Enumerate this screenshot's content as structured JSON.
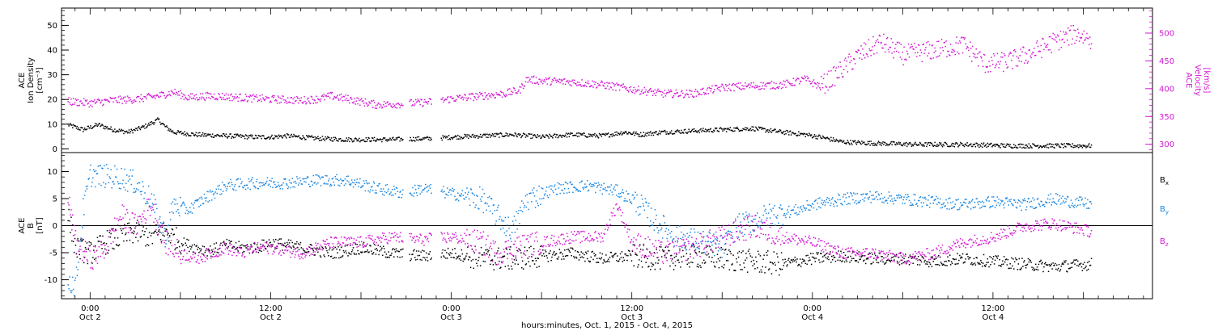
{
  "colors": {
    "black": "#000000",
    "magenta": "#d318d3",
    "blue": "#1a86e0",
    "frame": "#000000"
  },
  "x_axis": {
    "xlabel": "hours:minutes, Oct.  1, 2015 - Oct.  4, 2015",
    "ticks": [
      {
        "hours": 0,
        "time": "0:00",
        "day": "Oct 2"
      },
      {
        "hours": 12,
        "time": "12:00",
        "day": "Oct 2"
      },
      {
        "hours": 24,
        "time": "0:00",
        "day": "Oct 3"
      },
      {
        "hours": 36,
        "time": "12:00",
        "day": "Oct 3"
      },
      {
        "hours": 48,
        "time": "0:00",
        "day": "Oct 4"
      },
      {
        "hours": 60,
        "time": "12:00",
        "day": "Oct 4"
      }
    ]
  },
  "chart_data": [
    {
      "type": "scatter",
      "xunit": "hours from Oct 2 00:00",
      "xlim": [
        -1.9,
        70.6
      ],
      "left_axis": {
        "label_lines": [
          "ACE",
          "Ion Density",
          "[cm⁻³]"
        ],
        "ylim": [
          -1.5,
          57
        ],
        "ticks": [
          0,
          10,
          20,
          30,
          40,
          50
        ]
      },
      "right_axis": {
        "label_lines": [
          "ACE",
          "Velocity",
          "[km/s]"
        ],
        "ylim": [
          285,
          545
        ],
        "ticks": [
          300,
          350,
          400,
          450,
          500
        ]
      },
      "series": [
        {
          "name": "Ion Density",
          "axis": "left",
          "color": "black",
          "points": [
            [
              -1.5,
              10
            ],
            [
              -0.5,
              8
            ],
            [
              0.5,
              10
            ],
            [
              1.5,
              8
            ],
            [
              2.5,
              7
            ],
            [
              3.5,
              9
            ],
            [
              4.5,
              12
            ],
            [
              5.0,
              9
            ],
            [
              5.5,
              7
            ],
            [
              7,
              6
            ],
            [
              9,
              5.5
            ],
            [
              11,
              5
            ],
            [
              12,
              5
            ],
            [
              13,
              5.5
            ],
            [
              15,
              4.5
            ],
            [
              17,
              4
            ],
            [
              20,
              4
            ],
            [
              23,
              4.5
            ],
            [
              24,
              5
            ],
            [
              26,
              5.5
            ],
            [
              28,
              6
            ],
            [
              30,
              5
            ],
            [
              32,
              6
            ],
            [
              34,
              5.5
            ],
            [
              35.5,
              7
            ],
            [
              36.5,
              6
            ],
            [
              38,
              7
            ],
            [
              40,
              7.5
            ],
            [
              42,
              8
            ],
            [
              44,
              8.5
            ],
            [
              46,
              7
            ],
            [
              47.5,
              6
            ],
            [
              48.5,
              5
            ],
            [
              50,
              3
            ],
            [
              52,
              2.5
            ],
            [
              55,
              2
            ],
            [
              58,
              2
            ],
            [
              61,
              1.5
            ],
            [
              64,
              1.5
            ],
            [
              66.5,
              1.5
            ]
          ]
        },
        {
          "name": "Velocity",
          "axis": "right",
          "color": "magenta",
          "points": [
            [
              -1.5,
              378
            ],
            [
              0,
              375
            ],
            [
              1.5,
              380
            ],
            [
              3,
              382
            ],
            [
              4.5,
              388
            ],
            [
              5.5,
              395
            ],
            [
              6.5,
              385
            ],
            [
              8,
              388
            ],
            [
              10,
              385
            ],
            [
              12,
              382
            ],
            [
              14,
              380
            ],
            [
              15,
              382
            ],
            [
              16,
              388
            ],
            [
              17,
              383
            ],
            [
              19,
              372
            ],
            [
              21,
              374
            ],
            [
              23,
              378
            ],
            [
              24,
              383
            ],
            [
              26,
              388
            ],
            [
              27.5,
              392
            ],
            [
              28.5,
              398
            ],
            [
              29,
              418
            ],
            [
              30,
              415
            ],
            [
              32,
              413
            ],
            [
              34,
              408
            ],
            [
              36,
              400
            ],
            [
              38,
              392
            ],
            [
              40,
              392
            ],
            [
              42,
              403
            ],
            [
              44,
              406
            ],
            [
              46,
              408
            ],
            [
              47.5,
              418
            ],
            [
              48.5,
              405
            ],
            [
              49.5,
              425
            ],
            [
              51,
              460
            ],
            [
              52.5,
              485
            ],
            [
              54,
              462
            ],
            [
              56,
              470
            ],
            [
              58,
              480
            ],
            [
              59.5,
              445
            ],
            [
              61,
              450
            ],
            [
              62.5,
              465
            ],
            [
              64,
              485
            ],
            [
              65.5,
              500
            ],
            [
              66.5,
              490
            ]
          ]
        }
      ]
    },
    {
      "type": "scatter",
      "xunit": "hours from Oct 2 00:00",
      "xlim": [
        -1.9,
        70.6
      ],
      "left_axis": {
        "label_lines": [
          "ACE",
          "B",
          "[nT]"
        ],
        "ylim": [
          -13.5,
          13.5
        ],
        "ticks": [
          -10,
          -5,
          0,
          5,
          10
        ]
      },
      "zero_line": true,
      "legend": [
        "Bₓ",
        "Bᵧ",
        "Bᵩ"
      ],
      "legend_names": [
        "Bx",
        "By",
        "Bz"
      ],
      "legend_labels": [
        {
          "main": "B",
          "sub": "x"
        },
        {
          "main": "B",
          "sub": "y"
        },
        {
          "main": "B",
          "sub": "z"
        }
      ],
      "series": [
        {
          "name": "Bx",
          "color": "black",
          "points": [
            [
              -1.5,
              2
            ],
            [
              -1,
              -4
            ],
            [
              0,
              -5
            ],
            [
              1,
              -3
            ],
            [
              2,
              -2
            ],
            [
              3,
              -1
            ],
            [
              4,
              -2
            ],
            [
              5,
              -1
            ],
            [
              6,
              -3
            ],
            [
              7,
              -4
            ],
            [
              8,
              -4.5
            ],
            [
              9,
              -3.5
            ],
            [
              10,
              -4
            ],
            [
              11,
              -4
            ],
            [
              12,
              -3
            ],
            [
              14,
              -4
            ],
            [
              16,
              -5
            ],
            [
              18,
              -4
            ],
            [
              20,
              -5
            ],
            [
              22,
              -5.5
            ],
            [
              24,
              -5
            ],
            [
              26,
              -6
            ],
            [
              28,
              -6
            ],
            [
              30,
              -5.5
            ],
            [
              32,
              -5
            ],
            [
              34,
              -6
            ],
            [
              36,
              -5.5
            ],
            [
              38,
              -6
            ],
            [
              40,
              -5.5
            ],
            [
              42,
              -6
            ],
            [
              44,
              -6.5
            ],
            [
              46,
              -7
            ],
            [
              48,
              -6
            ],
            [
              50,
              -5.5
            ],
            [
              52,
              -6
            ],
            [
              54,
              -6
            ],
            [
              56,
              -6.5
            ],
            [
              58,
              -6
            ],
            [
              60,
              -6.5
            ],
            [
              62,
              -7
            ],
            [
              64,
              -7.5
            ],
            [
              66.5,
              -7
            ]
          ]
        },
        {
          "name": "By",
          "color": "blue",
          "points": [
            [
              -1.5,
              -10
            ],
            [
              -1,
              -11
            ],
            [
              -0.5,
              3
            ],
            [
              0,
              9.5
            ],
            [
              2,
              9
            ],
            [
              3,
              8
            ],
            [
              4,
              5
            ],
            [
              5,
              -2
            ],
            [
              5.5,
              4
            ],
            [
              6.5,
              3
            ],
            [
              7.5,
              5
            ],
            [
              9,
              7.5
            ],
            [
              11,
              8
            ],
            [
              13,
              8
            ],
            [
              15,
              8.5
            ],
            [
              17,
              8.5
            ],
            [
              19,
              7
            ],
            [
              21,
              6
            ],
            [
              22,
              7
            ],
            [
              24,
              6
            ],
            [
              26,
              5
            ],
            [
              27,
              2
            ],
            [
              28,
              -1
            ],
            [
              29,
              5
            ],
            [
              31,
              7
            ],
            [
              33,
              7.5
            ],
            [
              35,
              6.5
            ],
            [
              36.5,
              4
            ],
            [
              37.5,
              1
            ],
            [
              39,
              -2
            ],
            [
              41,
              -3
            ],
            [
              42,
              -4
            ],
            [
              43,
              0
            ],
            [
              45,
              2
            ],
            [
              47,
              3
            ],
            [
              48,
              4
            ],
            [
              50,
              5
            ],
            [
              52,
              5.5
            ],
            [
              54,
              5
            ],
            [
              56,
              4.5
            ],
            [
              58,
              4
            ],
            [
              60,
              4.5
            ],
            [
              62,
              4
            ],
            [
              64,
              5
            ],
            [
              66.5,
              4
            ]
          ]
        },
        {
          "name": "Bz",
          "color": "magenta",
          "points": [
            [
              -1.5,
              5
            ],
            [
              -1,
              -3
            ],
            [
              0,
              -6
            ],
            [
              1,
              -4
            ],
            [
              2,
              2
            ],
            [
              3,
              0
            ],
            [
              4,
              4
            ],
            [
              5,
              -3
            ],
            [
              6,
              -5
            ],
            [
              7,
              -6
            ],
            [
              8,
              -5
            ],
            [
              9,
              -4
            ],
            [
              10,
              -5
            ],
            [
              11,
              -4
            ],
            [
              12,
              -4
            ],
            [
              14,
              -5
            ],
            [
              16,
              -3
            ],
            [
              18,
              -3
            ],
            [
              20,
              -2
            ],
            [
              22,
              -2.5
            ],
            [
              24,
              -2
            ],
            [
              26,
              -3
            ],
            [
              27,
              -5
            ],
            [
              28,
              -4
            ],
            [
              30,
              -3
            ],
            [
              32,
              -2
            ],
            [
              34,
              -2
            ],
            [
              35,
              4
            ],
            [
              36,
              -3
            ],
            [
              38,
              -5
            ],
            [
              40,
              -4
            ],
            [
              42,
              -2
            ],
            [
              44,
              0
            ],
            [
              46,
              -2
            ],
            [
              48,
              -3
            ],
            [
              50,
              -5
            ],
            [
              52,
              -5
            ],
            [
              54,
              -6
            ],
            [
              56,
              -5
            ],
            [
              58,
              -3
            ],
            [
              60,
              -2
            ],
            [
              62,
              0
            ],
            [
              64,
              0.5
            ],
            [
              66.5,
              -1
            ]
          ]
        }
      ]
    }
  ]
}
